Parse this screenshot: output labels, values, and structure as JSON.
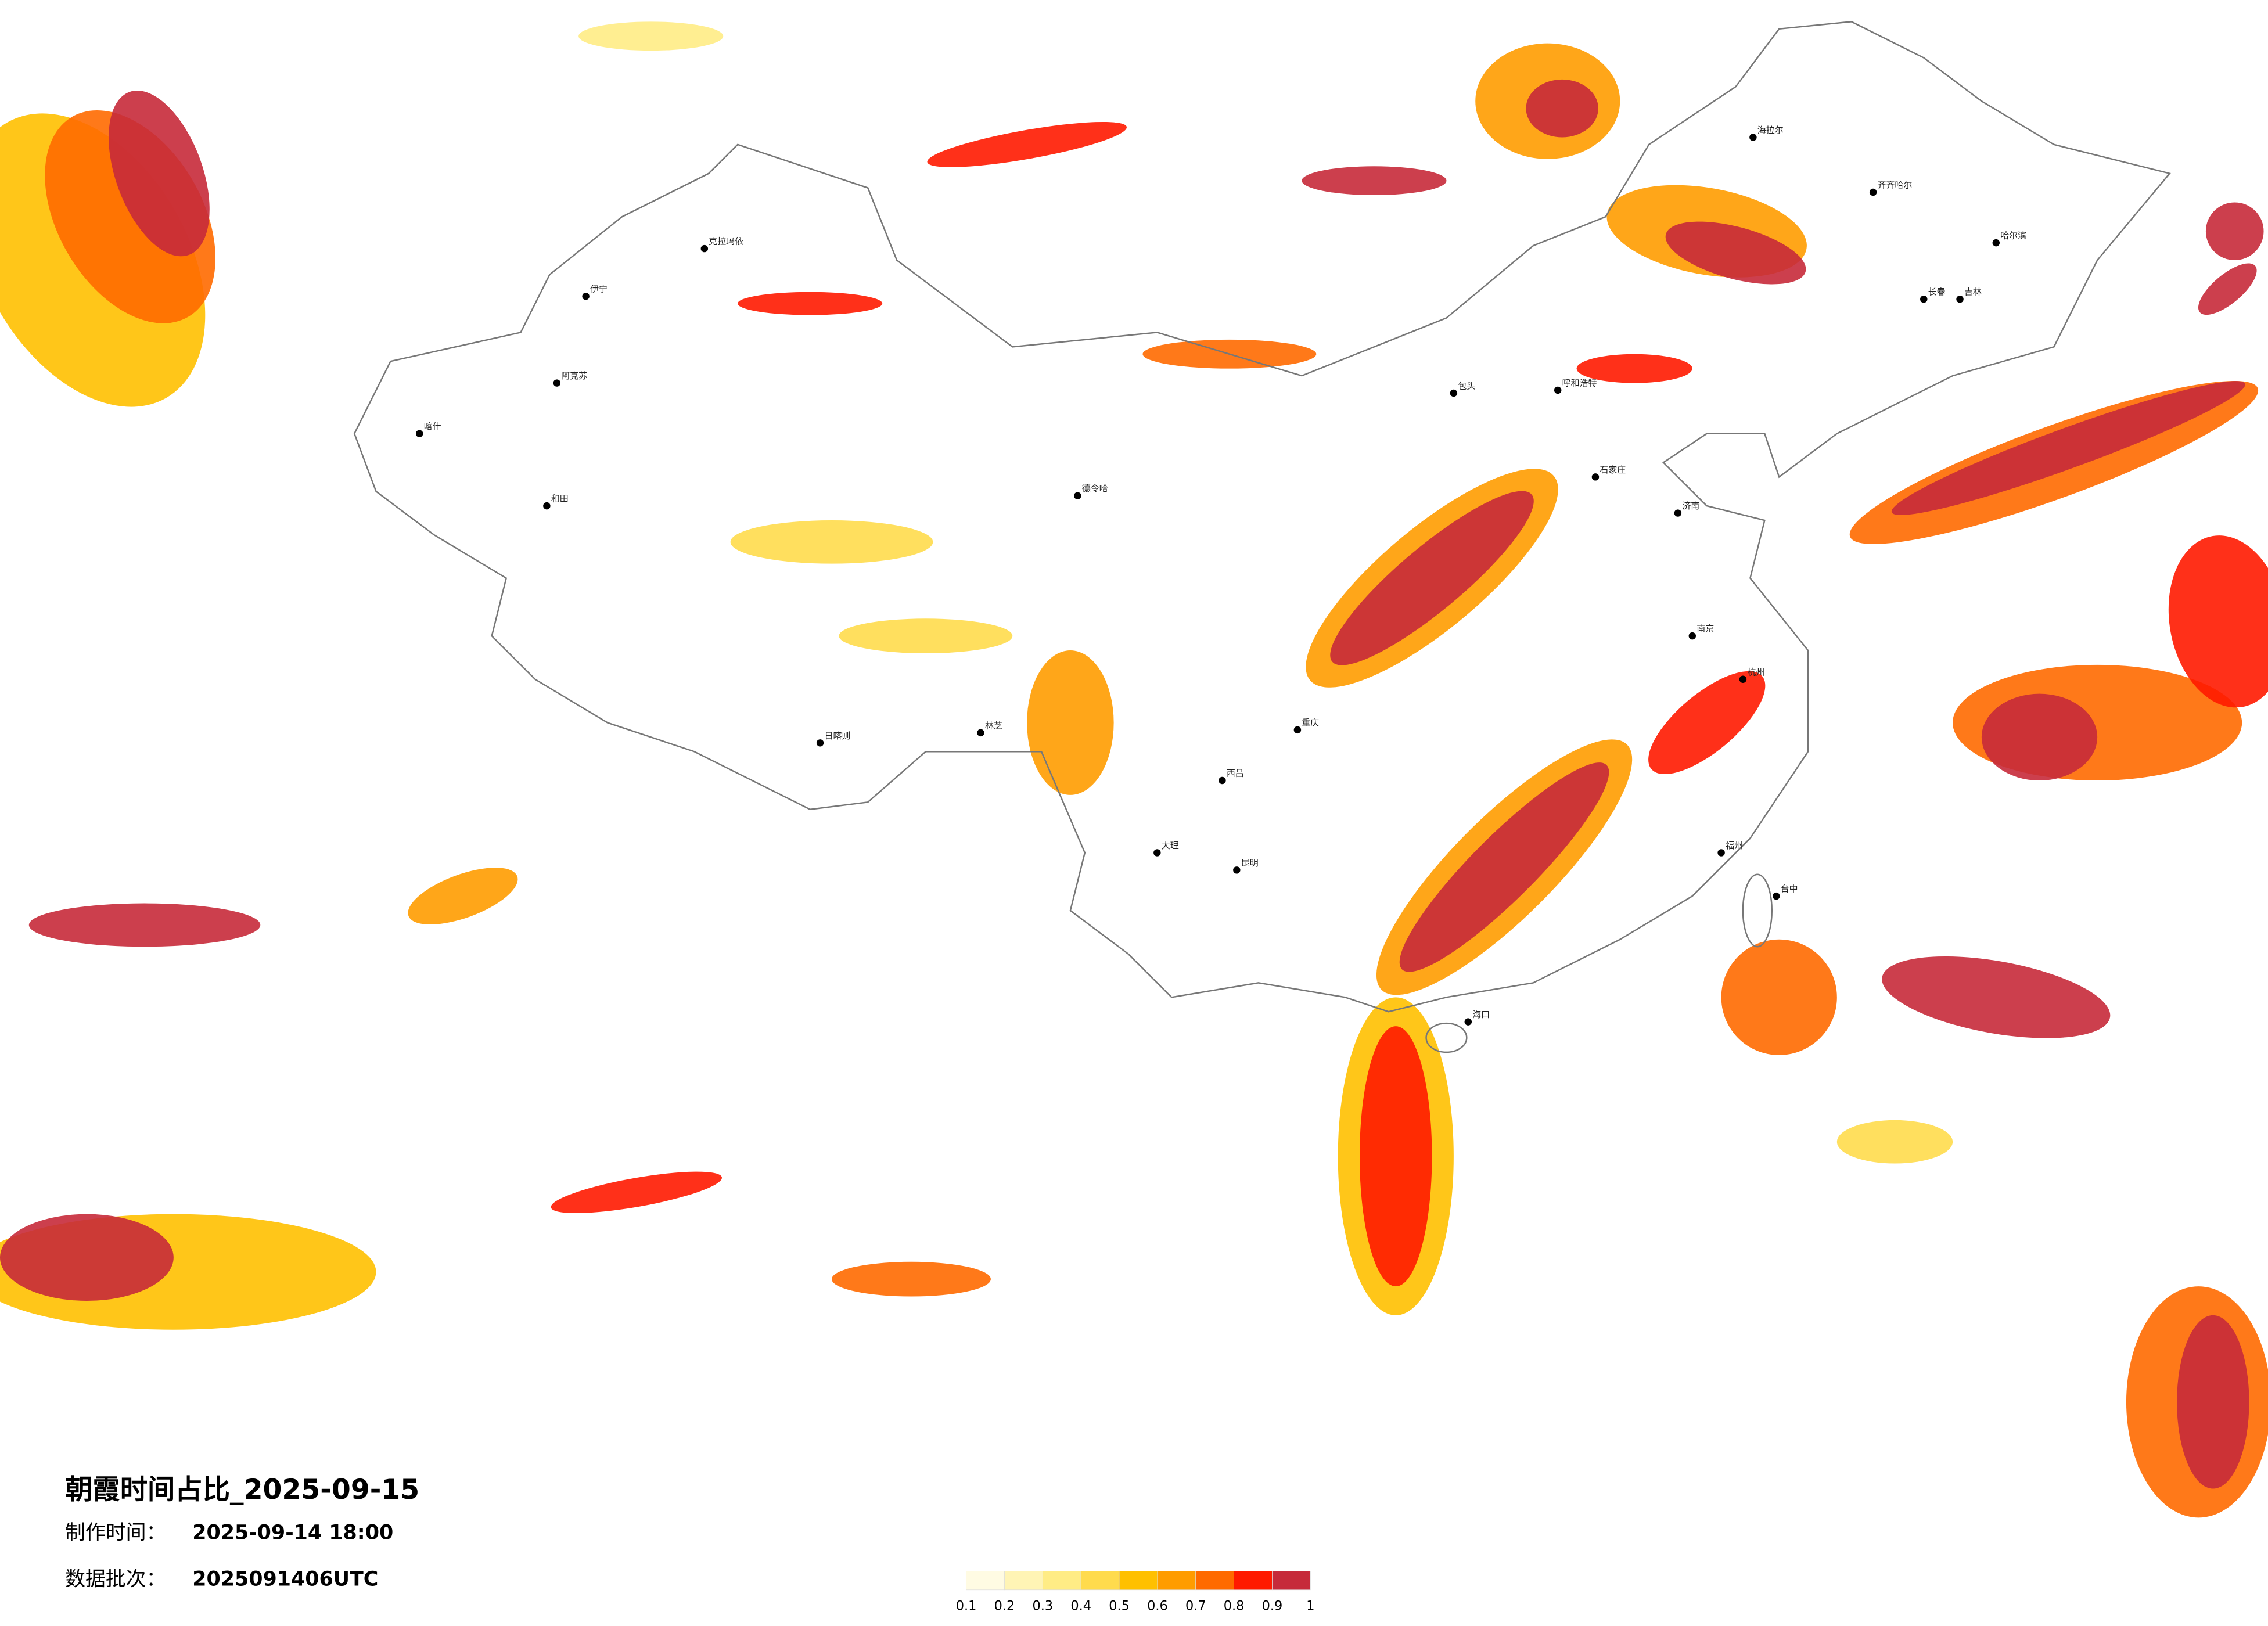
{
  "header": {
    "title": "朝霞时间占比_2025-09-15",
    "made_label": "制作时间：",
    "made_time": "2025-09-14 18:00",
    "batch_label": "数据批次：",
    "batch": "2025091406UTC"
  },
  "legend": {
    "ticks": [
      0.1,
      0.2,
      0.3,
      0.4,
      0.5,
      0.6,
      0.7,
      0.8,
      0.9,
      1
    ],
    "colors": [
      "#fffbe3",
      "#fff4b5",
      "#ffec85",
      "#ffdb4d",
      "#ffc000",
      "#ff9c00",
      "#ff6a00",
      "#ff1a00",
      "#c62a3a"
    ]
  },
  "cities": [
    "克拉玛依",
    "伊宁",
    "阿克苏",
    "和田",
    "喀什",
    "德令哈",
    "日喀则",
    "林芝",
    "海拉尔",
    "齐齐哈尔",
    "哈尔滨",
    "长春",
    "吉林",
    "呼和浩特",
    "包头",
    "石家庄",
    "济南",
    "重庆",
    "昆明",
    "海口",
    "杭州",
    "南京",
    "福州",
    "台中",
    "大理",
    "西昌"
  ]
}
